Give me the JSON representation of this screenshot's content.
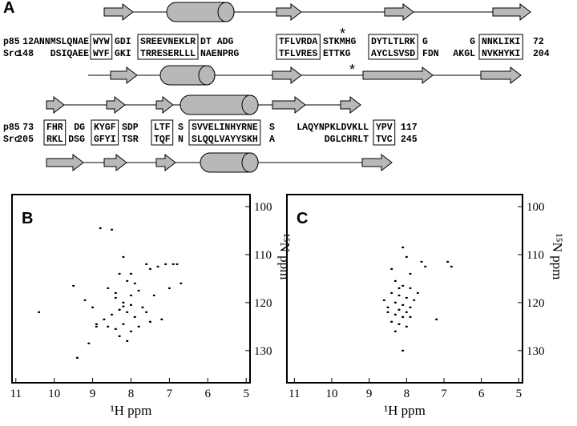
{
  "alignment": {
    "label": "A",
    "asterisks": [
      "*",
      "*"
    ],
    "rows": [
      {
        "p85_name": "p85",
        "src_name": "Src",
        "p85_start": 12,
        "src_start": 148,
        "p85_end": 72,
        "src_end": 204,
        "columns": [
          {
            "p85": "ANNMSLQNAE",
            "src": "DSIQAEE",
            "boxed": false
          },
          {
            "p85": "WYW",
            "src": "WYF",
            "boxed": true
          },
          {
            "p85": "GDI",
            "src": "GKI",
            "boxed": false
          },
          {
            "p85": "SREEVNEKLR",
            "src": "TRRESERLLL",
            "boxed": true
          },
          {
            "p85": "DT ADG",
            "src": "NAENPRG",
            "boxed": false
          },
          {
            "p85": "TFLVRDA",
            "src": "TFLVRES",
            "boxed": true
          },
          {
            "p85": "STKMHG",
            "src": "ETTKG",
            "boxed": false
          },
          {
            "p85": "DYTLTLRK",
            "src": "AYCLSVSD",
            "boxed": true
          },
          {
            "p85": "G",
            "src": "FDN",
            "boxed": false
          },
          {
            "p85": "G",
            "src": "AKGL",
            "boxed": false
          },
          {
            "p85": "NNKLIKI",
            "src": "NVKHYKI",
            "boxed": true
          }
        ]
      },
      {
        "p85_name": "p85",
        "src_name": "Src",
        "p85_start": 73,
        "src_start": 205,
        "p85_end": 117,
        "src_end": 245,
        "columns": [
          {
            "p85": "FHR",
            "src": "RKL",
            "boxed": true
          },
          {
            "p85": "DG",
            "src": "DSG",
            "boxed": false
          },
          {
            "p85": "KYGF",
            "src": "GFYI",
            "boxed": true
          },
          {
            "p85": "SDP",
            "src": "TSR",
            "boxed": false
          },
          {
            "p85": "LTF",
            "src": "TQF",
            "boxed": true
          },
          {
            "p85": "S",
            "src": "N",
            "boxed": false
          },
          {
            "p85": "SVVELINHYRNE",
            "src": "SLQQLVAYYSKH",
            "boxed": true
          },
          {
            "p85": "S",
            "src": "A",
            "boxed": false
          },
          {
            "p85": "LAQYNPKLDVKLL",
            "src": "DGLCHRLT",
            "boxed": false
          },
          {
            "p85": "YPV",
            "src": "TVC",
            "boxed": true
          }
        ]
      }
    ]
  },
  "chart_data": [
    {
      "type": "scatter",
      "title": "B",
      "x_label": "¹H ppm",
      "y_label": "¹⁵N ppm",
      "color": "#000000",
      "xlim": [
        11.1,
        4.9
      ],
      "ylim": [
        97.5,
        136.7
      ],
      "xticks": [
        11,
        10,
        9,
        8,
        7,
        6,
        5
      ],
      "yticks": [
        100,
        110,
        120,
        130
      ],
      "x": [
        8.8,
        8.5,
        8.2,
        7.6,
        7.5,
        7.3,
        7.1,
        6.9,
        6.8,
        8.3,
        8.1,
        7.9,
        8.6,
        7.8,
        8.0,
        8.4,
        8.2,
        8.0,
        7.7,
        8.3,
        8.1,
        8.5,
        7.9,
        8.7,
        9.0,
        9.2,
        8.9,
        7.4,
        7.2,
        8.6,
        8.4,
        8.2,
        8.0,
        7.8,
        8.3,
        8.1,
        7.6,
        9.5,
        10.4,
        9.4,
        9.1,
        8.9,
        8.4,
        8.0,
        7.0,
        6.7,
        8.2,
        7.5
      ],
      "y": [
        104.5,
        104.8,
        110.5,
        112.0,
        113.0,
        112.5,
        112.0,
        112.0,
        112.0,
        114.0,
        115.5,
        116.0,
        117.0,
        117.5,
        118.5,
        119.0,
        120.0,
        120.5,
        121.0,
        121.5,
        122.0,
        122.5,
        123.0,
        123.5,
        121.0,
        119.5,
        124.5,
        118.5,
        123.5,
        125.0,
        125.5,
        124.5,
        126.0,
        125.0,
        127.0,
        128.0,
        122.0,
        116.5,
        122.0,
        131.5,
        128.5,
        125.0,
        118.0,
        114.0,
        117.0,
        116.0,
        120.8,
        124.0
      ]
    },
    {
      "type": "scatter",
      "title": "C",
      "x_label": "¹H ppm",
      "y_label": "¹⁵N ppm",
      "color": "#000000",
      "xlim": [
        11.2,
        4.9
      ],
      "ylim": [
        97.5,
        136.7
      ],
      "xticks": [
        11,
        10,
        9,
        8,
        7,
        6,
        5
      ],
      "yticks": [
        100,
        110,
        120,
        130
      ],
      "x": [
        8.1,
        8.0,
        7.6,
        7.5,
        6.9,
        6.8,
        8.3,
        8.1,
        7.9,
        8.4,
        8.2,
        8.0,
        7.8,
        8.3,
        8.1,
        8.5,
        7.9,
        8.2,
        8.0,
        8.3,
        8.1,
        7.9,
        8.4,
        8.2,
        8.0,
        7.2,
        8.6,
        8.3,
        7.7,
        8.2,
        8.5,
        7.9,
        8.1,
        8.4
      ],
      "y": [
        108.5,
        110.5,
        111.5,
        112.5,
        111.5,
        112.5,
        115.5,
        116.5,
        117.0,
        118.0,
        118.5,
        119.0,
        119.5,
        120.0,
        120.5,
        121.0,
        121.0,
        121.5,
        122.0,
        122.5,
        123.0,
        123.0,
        124.0,
        124.5,
        125.0,
        123.5,
        119.5,
        126.0,
        118.0,
        117.0,
        122.0,
        114.0,
        130.0,
        113.0
      ]
    }
  ]
}
